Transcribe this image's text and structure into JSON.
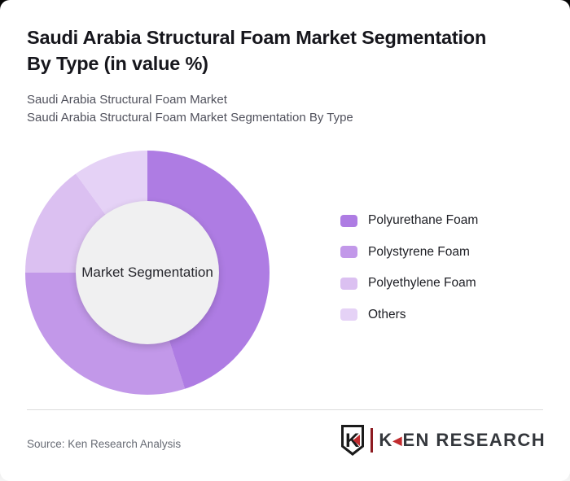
{
  "header": {
    "title": "Saudi Arabia Structural Foam Market Segmentation\nBy Type (in value %)",
    "subtitle1": "Saudi Arabia Structural Foam Market",
    "subtitle2": "Saudi Arabia Structural Foam Market Segmentation By Type"
  },
  "chart_data": {
    "type": "pie",
    "subtype": "donut",
    "title": "Saudi Arabia Structural Foam Market Segmentation By Type (in value %)",
    "unit": "value %",
    "center_label": "Market Segmentation",
    "legend_position": "right",
    "start_angle_deg": 0,
    "direction": "clockwise",
    "segments": [
      {
        "label": "Polyurethane Foam",
        "value": 45,
        "color": "#ae7ce3"
      },
      {
        "label": "Polystyrene Foam",
        "value": 30,
        "color": "#c298e9"
      },
      {
        "label": "Polyethylene Foam",
        "value": 15,
        "color": "#dbc0f1"
      },
      {
        "label": "Others",
        "value": 10,
        "color": "#e5d2f6"
      }
    ],
    "hole_color": "#f0f0f1"
  },
  "footer": {
    "source": "Source: Ken Research Analysis",
    "logo": {
      "shield_letter": "K",
      "wordmark_k": "K",
      "wordmark_arrow": "◀",
      "wordmark_rest": "EN RESEARCH",
      "accent_red": "#c12b2e"
    }
  }
}
